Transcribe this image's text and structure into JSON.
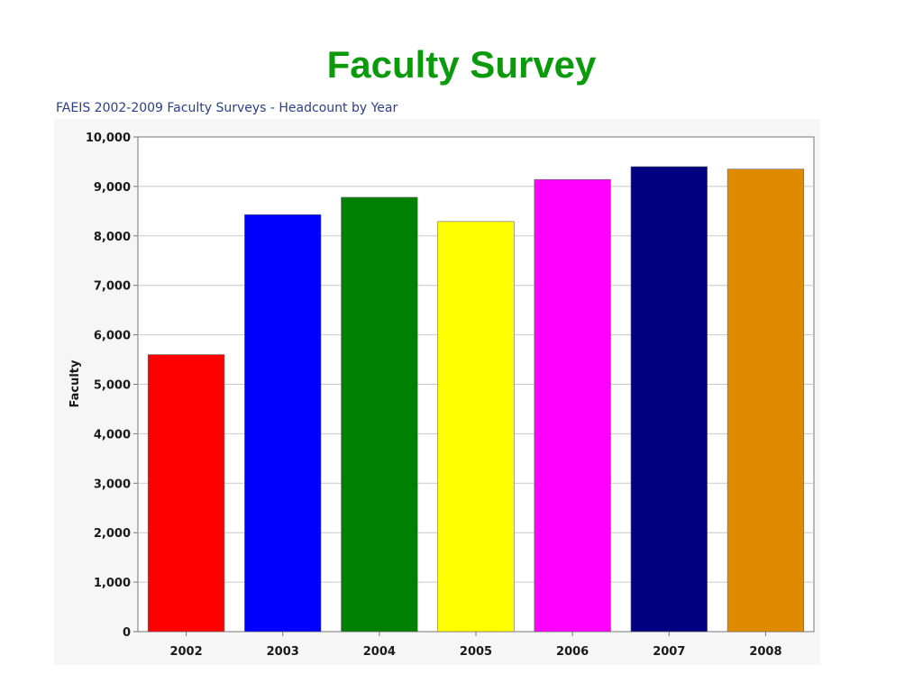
{
  "slide": {
    "title": "Faculty Survey"
  },
  "chart_data": {
    "type": "bar",
    "title": "FAEIS 2002-2009 Faculty Surveys - Headcount by Year",
    "xlabel": "",
    "ylabel": "Faculty",
    "categories": [
      "2002",
      "2003",
      "2004",
      "2005",
      "2006",
      "2007",
      "2008"
    ],
    "values": [
      5600,
      8430,
      8780,
      8290,
      9140,
      9400,
      9350
    ],
    "colors": [
      "#ff0000",
      "#0000ff",
      "#008000",
      "#ffff00",
      "#ff00ff",
      "#000080",
      "#e08a00"
    ],
    "ylim": [
      0,
      10000
    ],
    "yticks": [
      0,
      1000,
      2000,
      3000,
      4000,
      5000,
      6000,
      7000,
      8000,
      9000,
      10000
    ],
    "ytick_labels": [
      "0",
      "1,000",
      "2,000",
      "3,000",
      "4,000",
      "5,000",
      "6,000",
      "7,000",
      "8,000",
      "9,000",
      "10,000"
    ],
    "grid": true,
    "legend": "none"
  }
}
